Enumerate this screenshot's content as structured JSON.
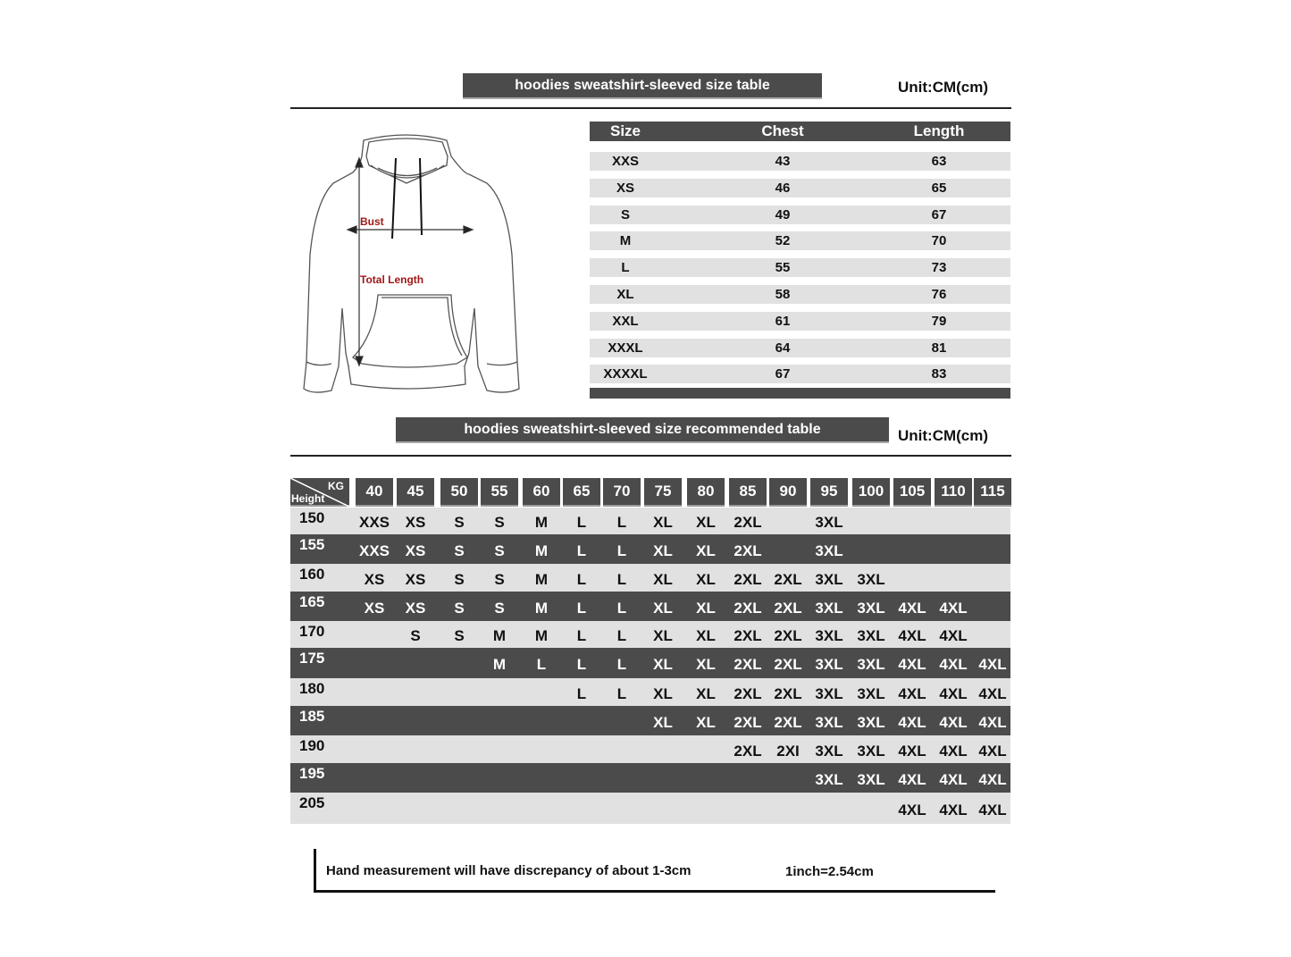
{
  "size_table": {
    "title": "hoodies sweatshirt-sleeved size  table",
    "unit": "Unit:CM(cm)",
    "headers": [
      "Size",
      "Chest",
      "Length"
    ],
    "rows": [
      [
        "XXS",
        "43",
        "63"
      ],
      [
        "XS",
        "46",
        "65"
      ],
      [
        "S",
        "49",
        "67"
      ],
      [
        "M",
        "52",
        "70"
      ],
      [
        "L",
        "55",
        "73"
      ],
      [
        "XL",
        "58",
        "76"
      ],
      [
        "XXL",
        "61",
        "79"
      ],
      [
        "XXXL",
        "64",
        "81"
      ],
      [
        "XXXXL",
        "67",
        "83"
      ]
    ]
  },
  "diagram": {
    "bust_label": "Bust",
    "length_label": "Total Length",
    "label_color": "#a01818"
  },
  "recommended_table": {
    "title": "hoodies sweatshirt-sleeved size recommended table",
    "unit": "Unit:CM(cm)",
    "corner_kg": "KG",
    "corner_height": "Height",
    "weights": [
      "40",
      "45",
      "50",
      "55",
      "60",
      "65",
      "70",
      "75",
      "80",
      "85",
      "90",
      "95",
      "100",
      "105",
      "110",
      "115"
    ],
    "rows": [
      {
        "height": "150",
        "sizes": [
          "XXS",
          "XS",
          "S",
          "S",
          "M",
          "L",
          "L",
          "XL",
          "XL",
          "2XL",
          "",
          "3XL",
          "",
          "",
          "",
          ""
        ]
      },
      {
        "height": "155",
        "sizes": [
          "XXS",
          "XS",
          "S",
          "S",
          "M",
          "L",
          "L",
          "XL",
          "XL",
          "2XL",
          "",
          "3XL",
          "",
          "",
          "",
          ""
        ]
      },
      {
        "height": "160",
        "sizes": [
          "XS",
          "XS",
          "S",
          "S",
          "M",
          "L",
          "L",
          "XL",
          "XL",
          "2XL",
          "2XL",
          "3XL",
          "3XL",
          "",
          "",
          ""
        ]
      },
      {
        "height": "165",
        "sizes": [
          "XS",
          "XS",
          "S",
          "S",
          "M",
          "L",
          "L",
          "XL",
          "XL",
          "2XL",
          "2XL",
          "3XL",
          "3XL",
          "4XL",
          "4XL",
          ""
        ]
      },
      {
        "height": "170",
        "sizes": [
          "",
          "S",
          "S",
          "M",
          "M",
          "L",
          "L",
          "XL",
          "XL",
          "2XL",
          "2XL",
          "3XL",
          "3XL",
          "4XL",
          "4XL",
          ""
        ]
      },
      {
        "height": "175",
        "sizes": [
          "",
          "",
          "",
          "M",
          "L",
          "L",
          "L",
          "XL",
          "XL",
          "2XL",
          "2XL",
          "3XL",
          "3XL",
          "4XL",
          "4XL",
          "4XL"
        ]
      },
      {
        "height": "180",
        "sizes": [
          "",
          "",
          "",
          "",
          "",
          "L",
          "L",
          "XL",
          "XL",
          "2XL",
          "2XL",
          "3XL",
          "3XL",
          "4XL",
          "4XL",
          "4XL"
        ]
      },
      {
        "height": "185",
        "sizes": [
          "",
          "",
          "",
          "",
          "",
          "",
          "",
          "XL",
          "XL",
          "2XL",
          "2XL",
          "3XL",
          "3XL",
          "4XL",
          "4XL",
          "4XL"
        ]
      },
      {
        "height": "190",
        "sizes": [
          "",
          "",
          "",
          "",
          "",
          "",
          "",
          "",
          "",
          "2XL",
          "2XI",
          "3XL",
          "3XL",
          "4XL",
          "4XL",
          "4XL"
        ]
      },
      {
        "height": "195",
        "sizes": [
          "",
          "",
          "",
          "",
          "",
          "",
          "",
          "",
          "",
          "",
          "",
          "3XL",
          "3XL",
          "4XL",
          "4XL",
          "4XL"
        ]
      },
      {
        "height": "205",
        "sizes": [
          "",
          "",
          "",
          "",
          "",
          "",
          "",
          "",
          "",
          "",
          "",
          "",
          "",
          "4XL",
          "4XL",
          "4XL"
        ]
      }
    ]
  },
  "footer": {
    "note": "Hand measurement will have discrepancy of about  1-3cm",
    "conversion": "1inch=2.54cm"
  },
  "colors": {
    "dark_band": "#4b4b4b",
    "light_band": "#e1e1e1"
  }
}
